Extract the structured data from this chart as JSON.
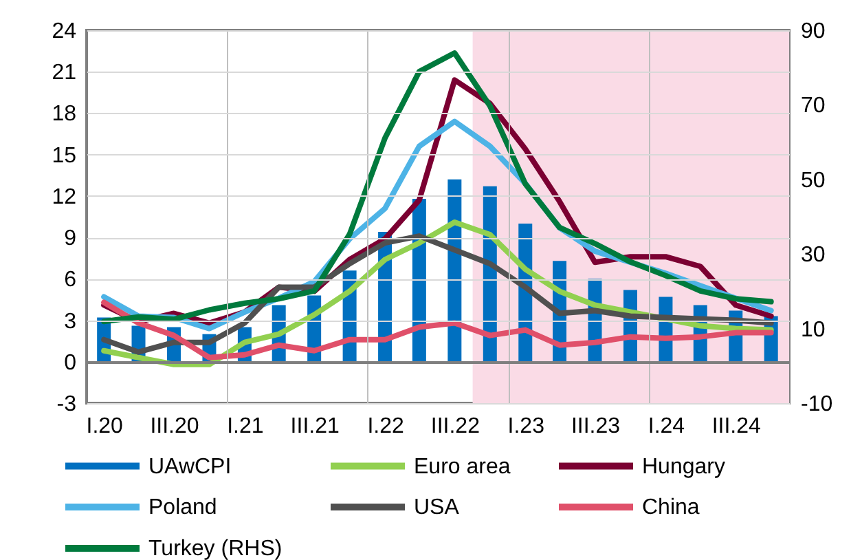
{
  "chart_data": {
    "type": "line",
    "x": [
      "2020-02-15",
      "2020-05-15",
      "2020-08-15",
      "2020-11-15",
      "2021-02-15",
      "2021-05-15",
      "2021-08-15",
      "2021-11-15",
      "2022-02-15",
      "2022-05-15",
      "2022-08-15",
      "2022-11-15",
      "2023-02-15",
      "2023-05-15",
      "2023-08-15",
      "2023-11-15",
      "2024-02-15",
      "2024-05-15",
      "2024-08-15",
      "2024-11-15"
    ],
    "xlim": [
      "2020-01-01",
      "2025-01-01"
    ],
    "xticks": [
      {
        "value": "2020-02-15",
        "label": "I.20"
      },
      {
        "value": "2020-08-15",
        "label": "III.20"
      },
      {
        "value": "2021-01-01",
        "label": null
      },
      {
        "value": "2021-02-15",
        "label": "I.21"
      },
      {
        "value": "2021-08-15",
        "label": "III.21"
      },
      {
        "value": "2022-01-01",
        "label": null
      },
      {
        "value": "2022-02-15",
        "label": "I.22"
      },
      {
        "value": "2022-08-15",
        "label": "III.22"
      },
      {
        "value": "2023-01-01",
        "label": null
      },
      {
        "value": "2023-02-15",
        "label": "I.23"
      },
      {
        "value": "2023-08-15",
        "label": "III.23"
      },
      {
        "value": "2024-01-01",
        "label": null
      },
      {
        "value": "2024-02-15",
        "label": "I.24"
      },
      {
        "value": "2024-08-15",
        "label": "III.24"
      }
    ],
    "ylim": [
      -3,
      24
    ],
    "yticks": [
      -3,
      0,
      3,
      6,
      9,
      12,
      15,
      18,
      21,
      24
    ],
    "y2lim": [
      -10,
      90
    ],
    "y2ticks": [
      -10,
      10,
      30,
      50,
      70,
      90
    ],
    "grid": true,
    "legend": "bottom",
    "line_style": "solid",
    "bands": [
      {
        "axis": "x",
        "from": "2022-10-01",
        "to": "2025-01-01",
        "color": "#fadbe6"
      }
    ],
    "series": [
      {
        "name": "UAwCPI",
        "type": "bar",
        "color": "#0070c0",
        "values": [
          3.2,
          2.6,
          2.5,
          2.0,
          2.5,
          4.1,
          4.8,
          6.6,
          9.4,
          11.8,
          13.2,
          12.7,
          10.0,
          7.3,
          6.0,
          5.2,
          4.7,
          4.1,
          3.7,
          3.3
        ]
      },
      {
        "name": "Euro area",
        "color": "#92d050",
        "values": [
          0.8,
          0.3,
          -0.2,
          -0.2,
          1.4,
          2.0,
          3.4,
          5.1,
          7.4,
          8.6,
          10.1,
          9.2,
          6.7,
          5.1,
          4.1,
          3.6,
          3.1,
          2.6,
          2.4,
          2.3
        ]
      },
      {
        "name": "Hungary",
        "color": "#7b0032",
        "values": [
          4.1,
          2.9,
          3.5,
          2.8,
          3.6,
          5.4,
          5.1,
          7.4,
          8.9,
          11.7,
          20.4,
          18.7,
          15.4,
          11.6,
          7.2,
          7.6,
          7.6,
          6.9,
          4.1,
          3.3
        ]
      },
      {
        "name": "Poland",
        "color": "#4db3e6",
        "values": [
          4.7,
          3.3,
          3.2,
          2.4,
          3.6,
          4.6,
          5.8,
          8.9,
          11.1,
          15.6,
          17.4,
          15.6,
          12.9,
          9.7,
          8.0,
          7.2,
          6.4,
          5.5,
          4.6,
          3.7
        ]
      },
      {
        "name": "USA",
        "color": "#505050",
        "values": [
          1.6,
          0.7,
          1.4,
          1.4,
          2.8,
          5.4,
          5.4,
          7.1,
          8.6,
          9.1,
          8.1,
          7.1,
          5.4,
          3.5,
          3.7,
          3.3,
          3.2,
          3.1,
          3.0,
          2.8
        ]
      },
      {
        "name": "China",
        "color": "#e0506a",
        "values": [
          4.3,
          2.8,
          1.9,
          0.3,
          0.5,
          1.2,
          0.8,
          1.6,
          1.6,
          2.5,
          2.8,
          1.9,
          2.3,
          1.2,
          1.4,
          1.8,
          1.7,
          1.8,
          2.1,
          2.1
        ]
      },
      {
        "name": "Turkey (RHS)",
        "color": "#007a3d",
        "axis": "y2",
        "values": [
          11.9,
          13.1,
          12.5,
          15.0,
          16.8,
          18.0,
          20.1,
          35.3,
          61.1,
          78.9,
          83.9,
          69.7,
          48.8,
          37.1,
          32.8,
          27.9,
          24.2,
          20.1,
          18.0,
          17.2
        ]
      }
    ]
  }
}
